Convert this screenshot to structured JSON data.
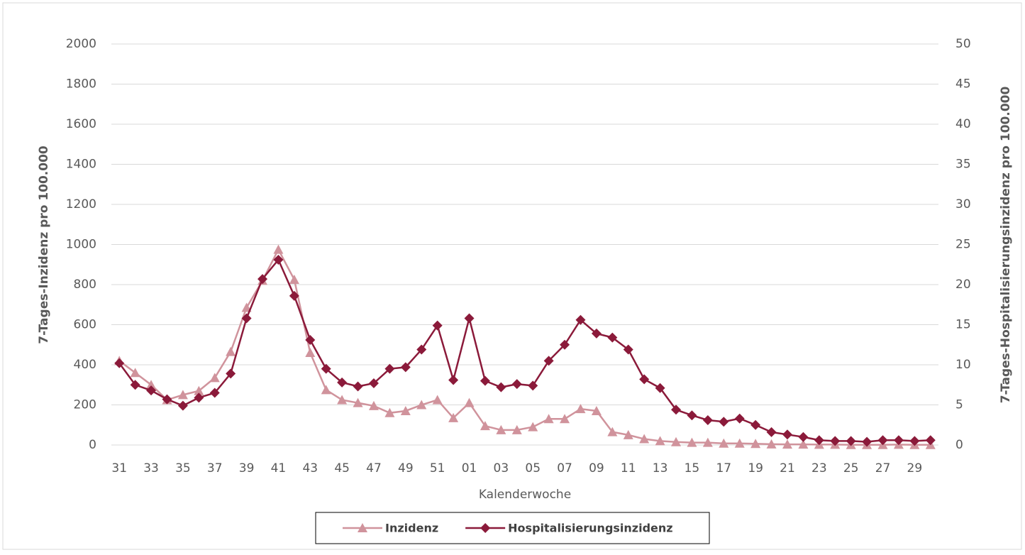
{
  "chart_data": {
    "type": "line",
    "x_label": "Kalenderwoche",
    "y_label": "7-Tages-Inzidenz pro 100.000",
    "y2_label": "7-Tages-Hospitalisierungsinzidenz pro 100.000",
    "categories": [
      "31",
      null,
      "33",
      null,
      "35",
      null,
      "37",
      null,
      "39",
      null,
      "41",
      null,
      "43",
      null,
      "45",
      null,
      "47",
      null,
      "49",
      null,
      "51",
      null,
      "01",
      null,
      "03",
      null,
      "05",
      null,
      "07",
      null,
      "09",
      null,
      "11",
      null,
      "13",
      null,
      "15",
      null,
      "17",
      null,
      "19",
      null,
      "21",
      null,
      "23",
      null,
      "25",
      null,
      "27",
      null,
      "29",
      null
    ],
    "series": [
      {
        "name": "Inzidenz",
        "color": "#d0939c",
        "marker": "triangle",
        "axis": "y",
        "values": [
          420,
          360,
          300,
          225,
          250,
          270,
          335,
          465,
          685,
          820,
          975,
          825,
          460,
          275,
          225,
          210,
          195,
          160,
          170,
          200,
          225,
          135,
          210,
          95,
          75,
          75,
          90,
          130,
          130,
          180,
          170,
          65,
          50,
          30,
          20,
          15,
          12,
          12,
          8,
          8,
          6,
          4,
          3,
          3,
          2,
          2,
          1,
          1,
          1,
          2,
          1,
          1
        ]
      },
      {
        "name": "Hospitalisierungsinzidenz",
        "color": "#8b1a3a",
        "marker": "diamond",
        "axis": "y2",
        "values": [
          10.2,
          7.5,
          6.8,
          5.7,
          4.9,
          5.9,
          6.5,
          8.9,
          15.8,
          20.7,
          23.1,
          18.6,
          13.1,
          9.5,
          7.8,
          7.3,
          7.7,
          9.5,
          9.7,
          11.9,
          14.9,
          8.1,
          15.8,
          8.0,
          7.2,
          7.6,
          7.4,
          10.5,
          12.5,
          15.6,
          13.9,
          13.4,
          11.9,
          8.2,
          7.1,
          4.4,
          3.7,
          3.1,
          2.9,
          3.3,
          2.5,
          1.6,
          1.3,
          1.0,
          0.6,
          0.5,
          0.5,
          0.4,
          0.6,
          0.6,
          0.5,
          0.6
        ]
      }
    ],
    "ylim": [
      0,
      2000
    ],
    "yticks": [
      0,
      200,
      400,
      600,
      800,
      1000,
      1200,
      1400,
      1600,
      1800,
      2000
    ],
    "y2lim": [
      0,
      50
    ],
    "y2ticks": [
      0,
      5,
      10,
      15,
      20,
      25,
      30,
      35,
      40,
      45,
      50
    ],
    "grid": true,
    "legend": "bottom"
  }
}
